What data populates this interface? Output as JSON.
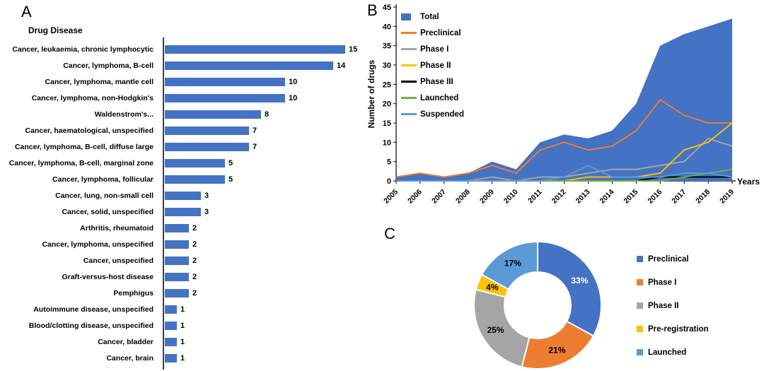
{
  "panels": {
    "a": {
      "label": "A",
      "title": "Drug Disease"
    },
    "b": {
      "label": "B"
    },
    "c": {
      "label": "C"
    }
  },
  "chart_data": [
    {
      "id": "drug_disease_bar",
      "type": "bar",
      "orientation": "horizontal",
      "title": "Drug Disease",
      "bar_color": "#4472C4",
      "xlim": [
        0,
        15.5
      ],
      "categories": [
        "Cancer, leukaemia, chronic lymphocytic",
        "Cancer, lymphoma, B-cell",
        "Cancer, lymphoma, mantle cell",
        "Cancer, lymphoma, non-Hodgkin's",
        "Waldenstrom's...",
        "Cancer, haematological, unspecified",
        "Cancer, lymphoma, B-cell, diffuse large",
        "Cancer, lymphoma, B-cell, marginal zone",
        "Cancer, lymphoma, follicular",
        "Cancer, lung, non-small cell",
        "Cancer, solid, unspecified",
        "Arthritis, rheumatoid",
        "Cancer, lymphoma, unspecified",
        "Cancer, unspecified",
        "Graft-versus-host disease",
        "Pemphigus",
        "Autoimmune disease, unspecified",
        "Blood/clotting disease, unspecified",
        "Cancer, bladder",
        "Cancer, brain"
      ],
      "values": [
        15,
        14,
        10,
        10,
        8,
        7,
        7,
        5,
        5,
        3,
        3,
        2,
        2,
        2,
        2,
        2,
        1,
        1,
        1,
        1
      ]
    },
    {
      "id": "drugs_by_year",
      "type": "area",
      "title": "",
      "ylabel": "Number of drugs",
      "xlabel": "Years",
      "ylim": [
        0,
        45
      ],
      "ytick_step": 5,
      "grid": false,
      "legend_position": "top-left",
      "x": [
        2005,
        2006,
        2007,
        2008,
        2009,
        2010,
        2011,
        2012,
        2013,
        2014,
        2015,
        2016,
        2017,
        2018,
        2019
      ],
      "series": [
        {
          "name": "Total",
          "style": "area",
          "color": "#4472C4",
          "values": [
            1,
            2,
            1,
            2,
            5,
            3,
            10,
            12,
            11,
            13,
            20,
            35,
            38,
            40,
            42
          ]
        },
        {
          "name": "Preclinical",
          "style": "line",
          "color": "#ED7D31",
          "values": [
            1,
            2,
            1,
            2,
            4,
            2,
            8,
            10,
            8,
            9,
            13,
            21,
            17,
            15,
            15
          ]
        },
        {
          "name": "Phase I",
          "style": "line",
          "color": "#A5A5A5",
          "values": [
            0,
            0,
            0,
            0,
            1,
            0,
            1,
            1,
            2,
            3,
            3,
            4,
            5,
            11,
            9
          ]
        },
        {
          "name": "Phase II",
          "style": "line",
          "color": "#FFC000",
          "values": [
            0,
            0,
            0,
            0,
            0,
            0,
            0,
            0,
            1,
            1,
            1,
            2,
            8,
            10,
            15
          ]
        },
        {
          "name": "Phase III",
          "style": "line",
          "color": "#000000",
          "values": [
            0,
            0,
            0,
            0,
            0,
            0,
            0,
            0,
            0,
            0,
            0,
            1,
            1,
            1,
            1
          ]
        },
        {
          "name": "Launched",
          "style": "line",
          "color": "#70AD47",
          "values": [
            0,
            0,
            0,
            0,
            0,
            0,
            0,
            0,
            0,
            0,
            0,
            0,
            1,
            2,
            3
          ]
        },
        {
          "name": "Suspended",
          "style": "line",
          "color": "#5B9BD5",
          "values": [
            0,
            0,
            0,
            0,
            0,
            0,
            0,
            1,
            4,
            1,
            1,
            1,
            2,
            2,
            1
          ]
        }
      ]
    },
    {
      "id": "phase_share_donut",
      "type": "pie",
      "donut": true,
      "slices": [
        {
          "label": "Preclinical",
          "value": 33,
          "display": "33%",
          "color": "#4472C4",
          "label_color": "#FFFFFF"
        },
        {
          "label": "Phase I",
          "value": 21,
          "display": "21%",
          "color": "#ED7D31",
          "label_color": "#000000"
        },
        {
          "label": "Phase II",
          "value": 25,
          "display": "25%",
          "color": "#A5A5A5",
          "label_color": "#000000"
        },
        {
          "label": "Pre-registration",
          "value": 4,
          "display": "4%",
          "color": "#FFC000",
          "label_color": "#000000"
        },
        {
          "label": "Launched",
          "value": 17,
          "display": "17%",
          "color": "#5B9BD5",
          "label_color": "#000000"
        }
      ]
    }
  ]
}
